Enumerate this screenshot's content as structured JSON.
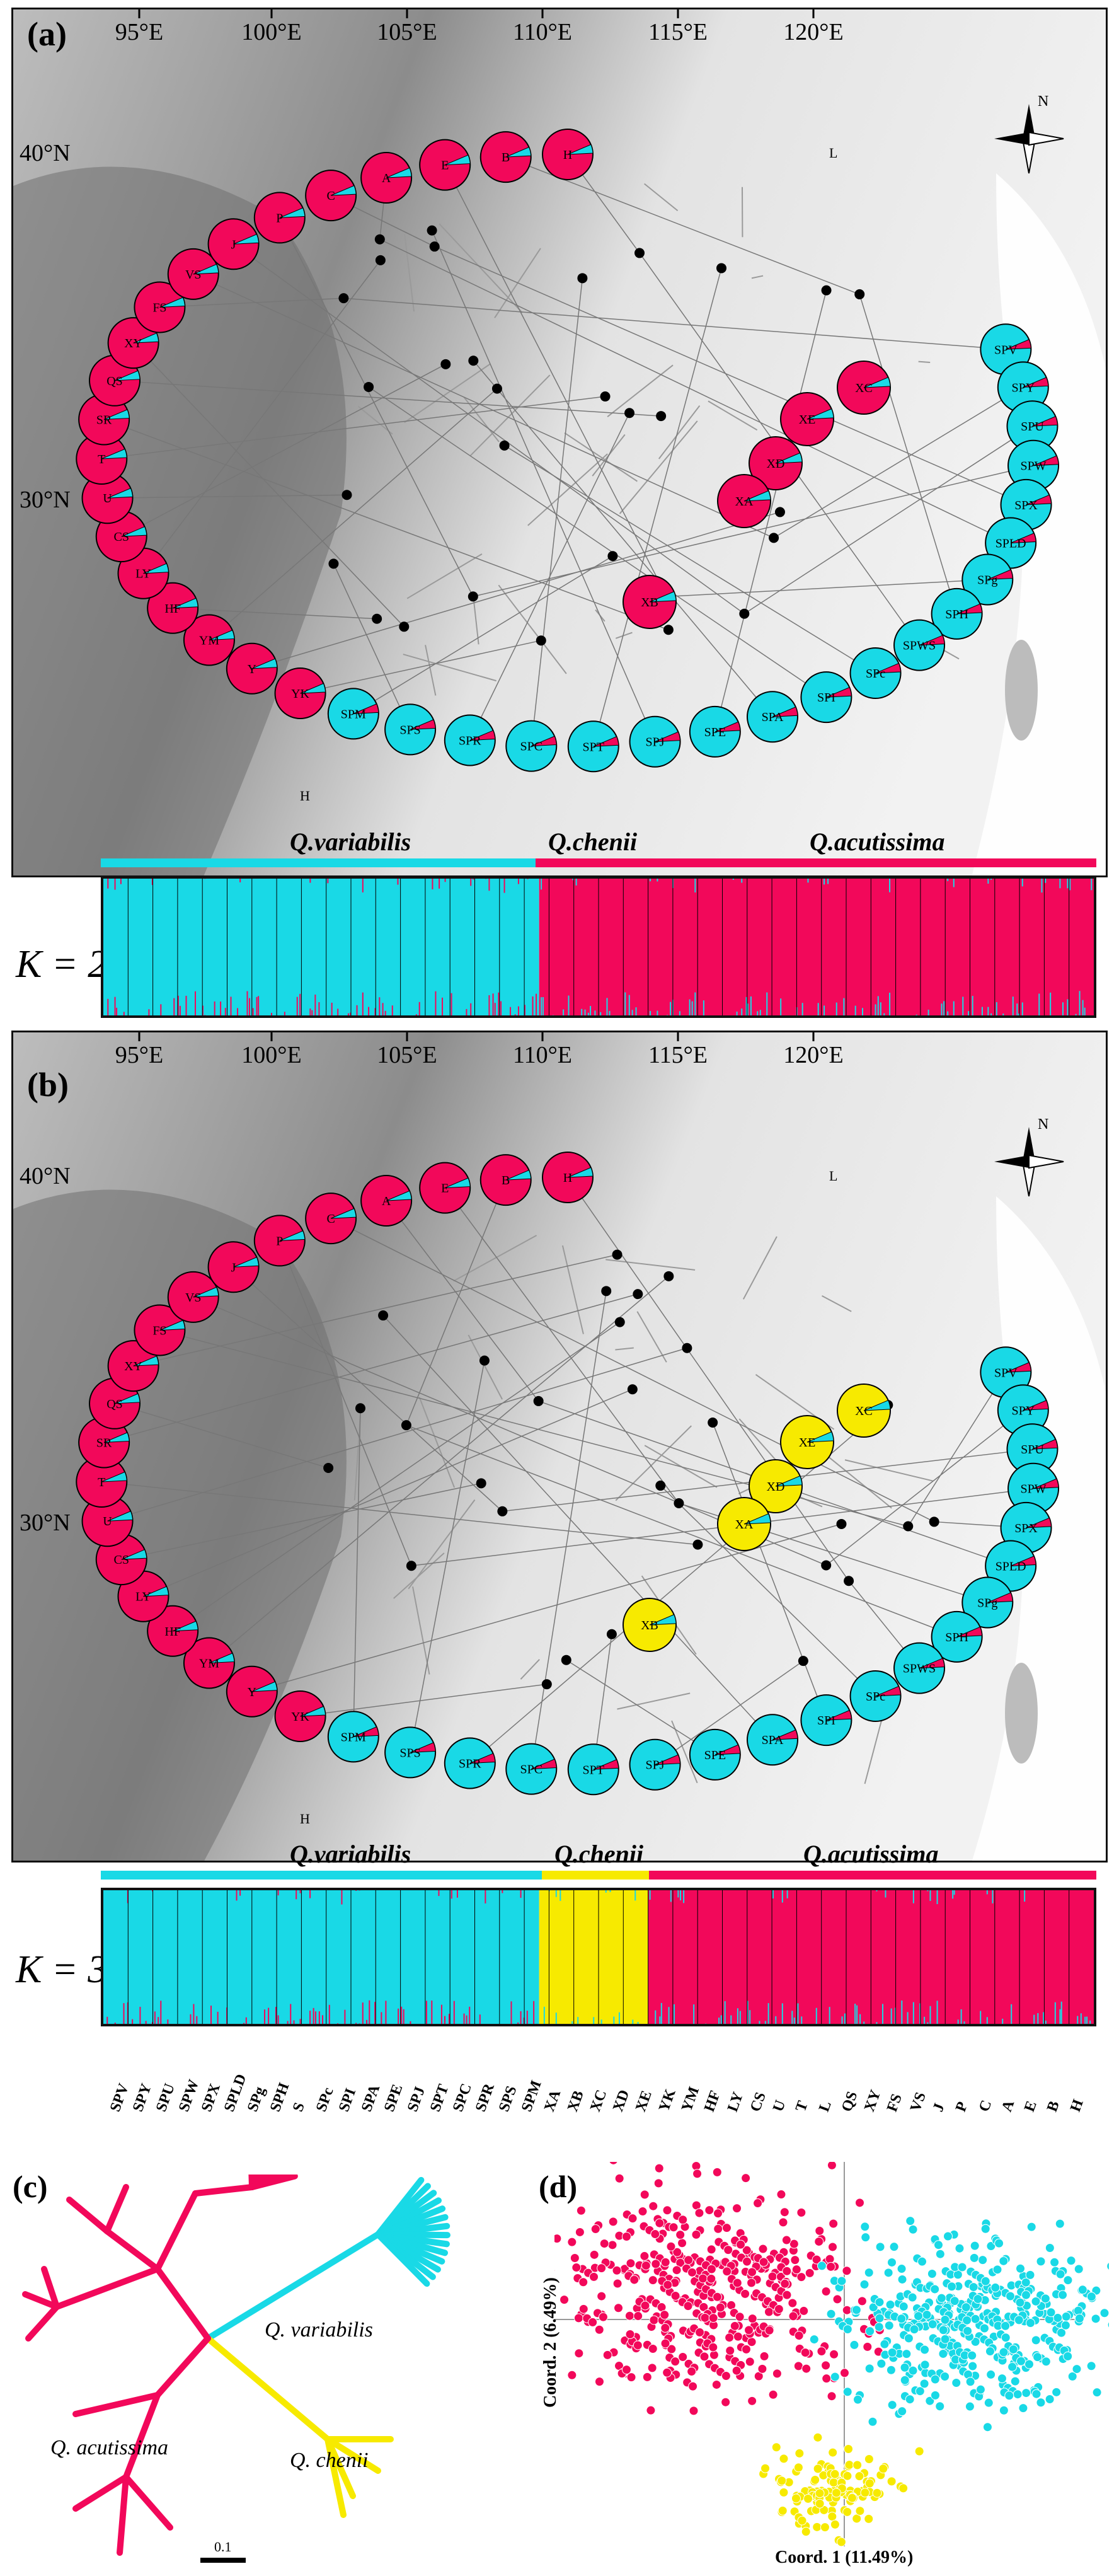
{
  "panels": {
    "a": "(a)",
    "b": "(b)",
    "c": "(c)",
    "d": "(d)"
  },
  "map": {
    "longitudes": [
      "95°E",
      "100°E",
      "105°E",
      "110°E",
      "115°E",
      "120°E"
    ],
    "latitudes": [
      "40°N",
      "30°N"
    ],
    "compass": "N",
    "extra_labels": [
      "L",
      "H"
    ]
  },
  "colors": {
    "variabilis": "#19d9e6",
    "chenii": "#f7ea00",
    "acutissima": "#f2085a",
    "map_bg": "#cfcfcf"
  },
  "pies_ring_a": [
    {
      "label": "SPV",
      "species": "variabilis"
    },
    {
      "label": "SPY",
      "species": "variabilis"
    },
    {
      "label": "SPU",
      "species": "variabilis"
    },
    {
      "label": "SPW",
      "species": "variabilis"
    },
    {
      "label": "SPX",
      "species": "variabilis"
    },
    {
      "label": "SPLD",
      "species": "variabilis"
    },
    {
      "label": "SPg",
      "species": "variabilis"
    },
    {
      "label": "SPH",
      "species": "variabilis"
    },
    {
      "label": "SPWS",
      "species": "variabilis"
    },
    {
      "label": "SPc",
      "species": "variabilis"
    },
    {
      "label": "SPI",
      "species": "variabilis"
    },
    {
      "label": "SPA",
      "species": "variabilis"
    },
    {
      "label": "SPE",
      "species": "variabilis"
    },
    {
      "label": "SPJ",
      "species": "variabilis"
    },
    {
      "label": "SPT",
      "species": "variabilis"
    },
    {
      "label": "SPC",
      "species": "variabilis"
    },
    {
      "label": "SPR",
      "species": "variabilis"
    },
    {
      "label": "SPS",
      "species": "variabilis"
    },
    {
      "label": "SPM",
      "species": "variabilis"
    },
    {
      "label": "YK",
      "species": "acutissima"
    },
    {
      "label": "Y",
      "species": "acutissima"
    },
    {
      "label": "YM",
      "species": "acutissima"
    },
    {
      "label": "HF",
      "species": "acutissima"
    },
    {
      "label": "LY",
      "species": "acutissima"
    },
    {
      "label": "CS",
      "species": "acutissima"
    },
    {
      "label": "U",
      "species": "acutissima"
    },
    {
      "label": "T",
      "species": "acutissima"
    },
    {
      "label": "SR",
      "species": "acutissima"
    },
    {
      "label": "QS",
      "species": "acutissima"
    },
    {
      "label": "XY",
      "species": "acutissima"
    },
    {
      "label": "FS",
      "species": "acutissima"
    },
    {
      "label": "VS",
      "species": "acutissima"
    },
    {
      "label": "J",
      "species": "acutissima"
    },
    {
      "label": "P",
      "species": "acutissima"
    },
    {
      "label": "C",
      "species": "acutissima"
    },
    {
      "label": "A",
      "species": "acutissima"
    },
    {
      "label": "E",
      "species": "acutissima"
    },
    {
      "label": "B",
      "species": "acutissima"
    },
    {
      "label": "H",
      "species": "acutissima"
    }
  ],
  "pies_inner_a": [
    {
      "label": "XC",
      "species": "acutissima"
    },
    {
      "label": "XE",
      "species": "acutissima"
    },
    {
      "label": "XD",
      "species": "acutissima"
    },
    {
      "label": "XA",
      "species": "acutissima"
    },
    {
      "label": "XB",
      "species": "acutissima"
    }
  ],
  "pies_inner_b": [
    {
      "label": "XC",
      "species": "chenii"
    },
    {
      "label": "XE",
      "species": "chenii"
    },
    {
      "label": "XD",
      "species": "chenii"
    },
    {
      "label": "XA",
      "species": "chenii"
    },
    {
      "label": "XB",
      "species": "chenii"
    }
  ],
  "structure": {
    "k2": {
      "label": "K = 2",
      "groups": [
        {
          "name": "Q.variabilis",
          "color": "variabilis",
          "fraction": 0.44
        },
        {
          "name": "Q.chenii",
          "color": "chenii",
          "fraction": 0.0
        },
        {
          "name": "Q.acutissima",
          "color": "acutissima",
          "fraction": 0.56
        }
      ]
    },
    "k3": {
      "label": "K = 3",
      "groups": [
        {
          "name": "Q.variabilis",
          "color": "variabilis",
          "fraction": 0.44
        },
        {
          "name": "Q.chenii",
          "color": "chenii",
          "fraction": 0.11
        },
        {
          "name": "Q.acutissima",
          "color": "acutissima",
          "fraction": 0.45
        }
      ]
    },
    "species_names": {
      "variabilis": "Q.variabilis",
      "chenii": "Q.chenii",
      "acutissima": "Q.acutissima"
    }
  },
  "population_labels": [
    "SPV",
    "SPY",
    "SPU",
    "SPW",
    "SPX",
    "SPLD",
    "SPg",
    "SPH",
    "S",
    "SPc",
    "SPI",
    "SPA",
    "SPE",
    "SPJ",
    "SPT",
    "SPC",
    "SPR",
    "SPS",
    "SPM",
    "XA",
    "XB",
    "XC",
    "XD",
    "XE",
    "YK",
    "YM",
    "HF",
    "LY",
    "CS",
    "U",
    "T",
    "L",
    "QS",
    "XY",
    "FS",
    "VS",
    "J",
    "P",
    "C",
    "A",
    "E",
    "B",
    "H"
  ],
  "tree": {
    "labels": {
      "variabilis": "Q. variabilis",
      "acutissima": "Q. acutissima",
      "chenii": "Q. chenii"
    },
    "scale": "0.1"
  },
  "pcoa": {
    "xlabel": "Coord. 1 (11.49%)",
    "ylabel": "Coord. 2 (6.49%)"
  }
}
